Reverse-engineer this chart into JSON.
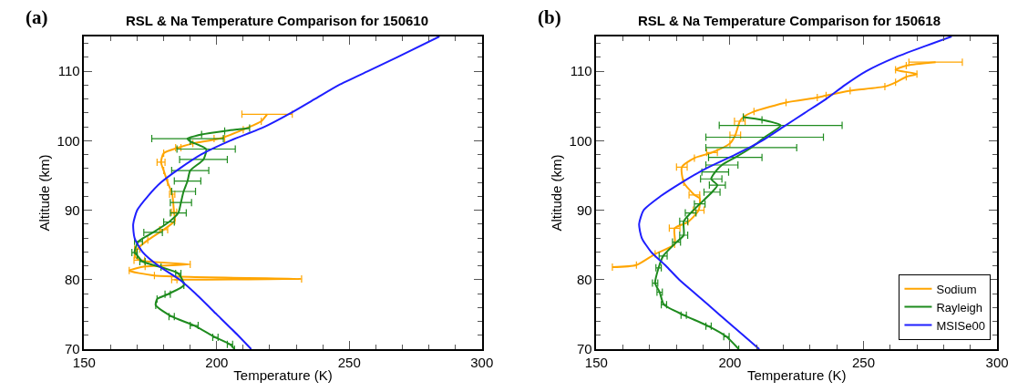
{
  "chart_data": [
    {
      "type": "line",
      "title": "RSL & Na Temperature Comparison for 150610",
      "xlabel": "Temperature (K)",
      "ylabel": "Altitude (km)",
      "annotations": [
        "(a)"
      ],
      "xlim": [
        150,
        300
      ],
      "xticks": [
        150,
        200,
        250,
        300
      ],
      "ylim": [
        70,
        115
      ],
      "yticks": [
        70,
        80,
        90,
        100,
        110
      ],
      "legend": false,
      "line_style": "solid",
      "series": [
        {
          "color": "#ffa500",
          "x": [
            219,
            216.8,
            210,
            201,
            191,
            185.5,
            180,
            179,
            180,
            181.5,
            183.2,
            183.9,
            184.2,
            180,
            174,
            170,
            169,
            170.8,
            190,
            173,
            167,
            176.5,
            232,
            184
          ],
          "values": [
            103.8,
            102.8,
            101.6,
            100.3,
            99.6,
            99,
            98.2,
            96.9,
            95.7,
            94,
            92.3,
            89.7,
            88.5,
            87.2,
            85.7,
            84.4,
            83.5,
            82.8,
            82.2,
            81.9,
            81.3,
            80.6,
            80.1,
            80.0
          ],
          "xerrors": [
            9.5,
            null,
            null,
            2,
            null,
            1,
            null,
            1.5,
            null,
            null,
            1,
            1,
            null,
            1.5,
            null,
            1,
            null,
            2,
            null,
            null,
            null,
            null,
            null,
            1
          ]
        },
        {
          "color": "#1e8b1e",
          "x": [
            206.7,
            205,
            199.5,
            191.5,
            183,
            177,
            177.5,
            181.5,
            187.6,
            185.5,
            179,
            172,
            170,
            169,
            170.5,
            176,
            182,
            185.5,
            186.5,
            187.5,
            189,
            190,
            195,
            196,
            190,
            189,
            194.3,
            203,
            212.4
          ],
          "values": [
            70,
            70.7,
            71.7,
            73.4,
            74.7,
            76.3,
            77.2,
            77.9,
            79.2,
            80.9,
            81.8,
            82.6,
            83.5,
            83.9,
            85.5,
            86.8,
            88.3,
            89.6,
            91.1,
            92.7,
            94.2,
            95.7,
            97.3,
            98.8,
            99.9,
            100.3,
            100.9,
            101.4,
            101.8
          ],
          "xerrors": [
            null,
            1,
            1,
            1.5,
            1,
            null,
            null,
            1,
            null,
            1,
            null,
            1,
            null,
            1,
            1.5,
            3.5,
            2,
            3,
            4,
            4.5,
            5,
            7,
            9,
            11,
            null,
            13.5,
            null,
            null,
            null
          ]
        },
        {
          "color": "#1f1fff",
          "x": [
            213,
            208,
            200,
            192,
            186,
            178,
            172,
            169,
            168.5,
            170,
            174,
            179,
            186,
            194,
            205,
            218,
            228,
            237,
            246,
            257,
            268,
            284
          ],
          "values": [
            70,
            72,
            75,
            78,
            80,
            82,
            84,
            86,
            88,
            90,
            92,
            94,
            96,
            98,
            100,
            102,
            104,
            106,
            108,
            110,
            112,
            115
          ]
        }
      ]
    },
    {
      "type": "line",
      "title": "RSL & Na Temperature Comparison for 150618",
      "xlabel": "Temperature (K)",
      "ylabel": "Altitude (km)",
      "annotations": [
        "(b)"
      ],
      "xlim": [
        150,
        300
      ],
      "xticks": [
        150,
        200,
        250,
        300
      ],
      "ylim": [
        70,
        115
      ],
      "yticks": [
        70,
        80,
        90,
        100,
        110
      ],
      "legend": "bottom right",
      "line_style": "solid",
      "series": [
        {
          "name": "Sodium",
          "color": "#ffa500",
          "x": [
            277,
            266,
            262,
            270,
            266,
            262,
            258,
            245,
            236,
            232.7,
            221,
            209,
            205,
            203.7,
            202,
            200,
            193.3,
            186.7,
            182,
            182.7,
            186.7,
            188.7,
            188.3,
            184.3,
            179.3,
            179.3,
            172,
            165,
            156
          ],
          "values": [
            111.3,
            110.8,
            110.2,
            109.6,
            109.2,
            108.4,
            107.8,
            107.2,
            106.5,
            106.2,
            105.5,
            104.2,
            103.4,
            102.8,
            100.8,
            99.6,
            98.3,
            97.5,
            96.2,
            94,
            92.2,
            91.7,
            90,
            88.3,
            87.4,
            85.1,
            83.7,
            82.1,
            81.8
          ],
          "xerrors": [
            10,
            null,
            null,
            null,
            null,
            null,
            null,
            null,
            null,
            null,
            null,
            null,
            null,
            2,
            2,
            null,
            2,
            null,
            2,
            null,
            2,
            null,
            2,
            null,
            2,
            null,
            null,
            null,
            null
          ]
        },
        {
          "name": "Rayleigh",
          "color": "#1e8b1e",
          "x": [
            203.3,
            198.7,
            192,
            182.7,
            175.3,
            173.7,
            172,
            173.3,
            175,
            180,
            182.7,
            182.7,
            185.3,
            188.7,
            193.3,
            195.3,
            193,
            194.5,
            197,
            202,
            208,
            213,
            219,
            212,
            205
          ],
          "values": [
            70,
            71.8,
            73.3,
            74.9,
            76.4,
            78.2,
            79.5,
            81.7,
            83.4,
            85.4,
            86.4,
            88.4,
            89.6,
            90.9,
            92.6,
            93.6,
            94.5,
            95.5,
            96.5,
            97.6,
            99,
            100.5,
            102.2,
            103,
            103.4
          ],
          "xerrors": [
            null,
            1,
            1,
            1,
            1,
            1,
            1,
            1,
            1.5,
            1.5,
            1.5,
            1.5,
            2,
            2,
            3,
            3,
            4,
            5,
            6,
            10,
            17,
            22,
            23,
            null,
            null
          ]
        },
        {
          "name": "MSISe00",
          "color": "#1f1fff",
          "x": [
            211,
            205,
            196,
            187,
            181,
            176,
            170.5,
            167,
            166,
            167.7,
            174,
            182,
            191,
            202,
            212,
            220,
            228,
            236,
            243,
            251,
            262,
            283
          ],
          "values": [
            70,
            72,
            75,
            78,
            80,
            82,
            84,
            86,
            88,
            90,
            92,
            94,
            96,
            98,
            100,
            102,
            104,
            106,
            108,
            110,
            112,
            115
          ]
        }
      ]
    }
  ]
}
